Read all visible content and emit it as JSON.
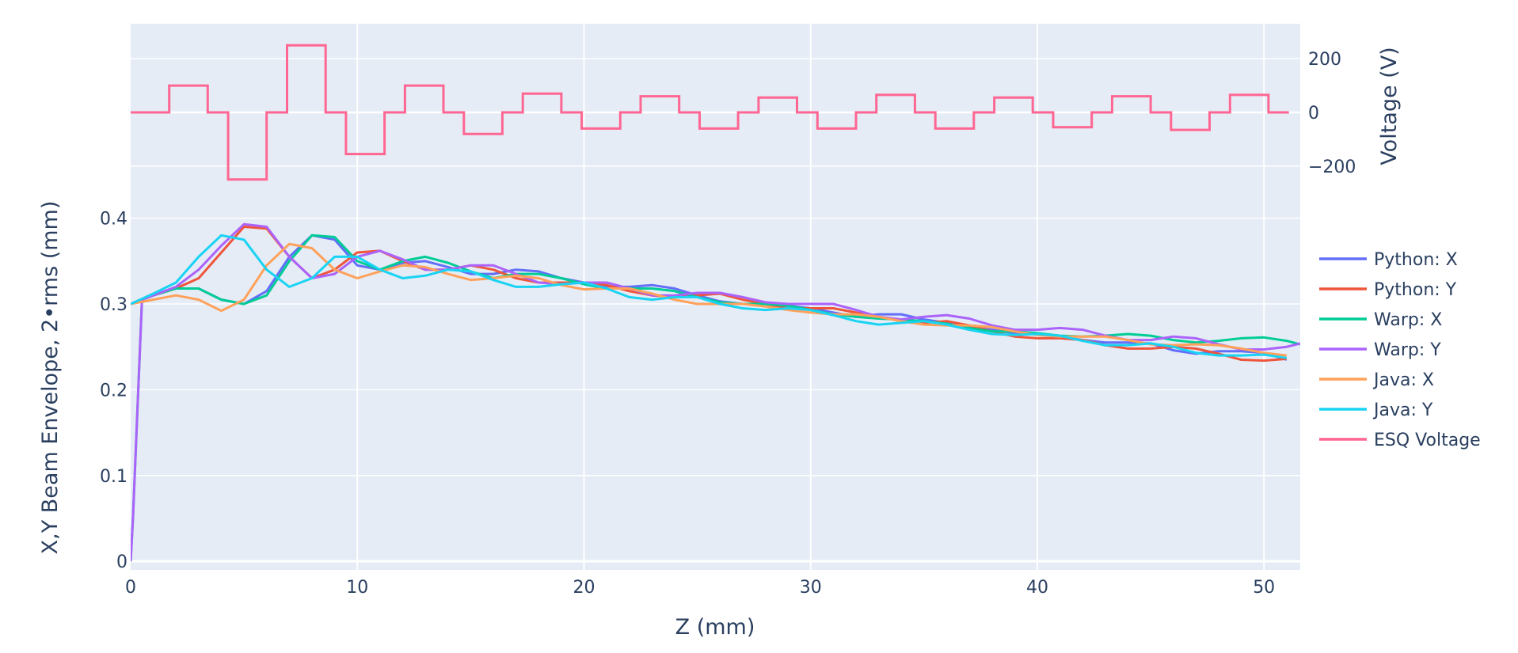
{
  "chart_data": [
    {
      "type": "line",
      "panel": "voltage",
      "ylabel": "Voltage (V)",
      "ylim": [
        -330,
        330
      ],
      "ytick_values": [
        200,
        0,
        -200
      ],
      "ytick_labels": [
        "200",
        "0",
        "−200"
      ],
      "yaxis_side": "right",
      "series": [
        {
          "name": "ESQ Voltage",
          "color": "#ff6692",
          "line_shape": "step",
          "x": [
            0,
            1.7,
            1.7,
            3.4,
            3.4,
            4.3,
            4.3,
            6.0,
            6.0,
            6.9,
            6.9,
            8.6,
            8.6,
            9.5,
            9.5,
            11.2,
            11.2,
            12.1,
            12.1,
            13.8,
            13.8,
            14.7,
            14.7,
            16.4,
            16.4,
            17.3,
            17.3,
            19.0,
            19.0,
            19.9,
            19.9,
            21.6,
            21.6,
            22.5,
            22.5,
            24.2,
            24.2,
            25.1,
            25.1,
            26.8,
            26.8,
            27.7,
            27.7,
            29.4,
            29.4,
            30.3,
            30.3,
            32.0,
            32.0,
            32.9,
            32.9,
            34.6,
            34.6,
            35.5,
            35.5,
            37.2,
            37.2,
            38.1,
            38.1,
            39.8,
            39.8,
            40.7,
            40.7,
            42.4,
            42.4,
            43.3,
            43.3,
            45.0,
            45.0,
            45.9,
            45.9,
            47.6,
            47.6,
            48.5,
            48.5,
            50.2,
            50.2,
            51.1
          ],
          "y": [
            0,
            0,
            100,
            100,
            0,
            0,
            -250,
            -250,
            0,
            0,
            250,
            250,
            0,
            0,
            -155,
            -155,
            0,
            0,
            100,
            100,
            0,
            0,
            -80,
            -80,
            0,
            0,
            70,
            70,
            0,
            0,
            -60,
            -60,
            0,
            0,
            60,
            60,
            0,
            0,
            -60,
            -60,
            0,
            0,
            55,
            55,
            0,
            0,
            -60,
            -60,
            0,
            0,
            65,
            65,
            0,
            0,
            -60,
            -60,
            0,
            0,
            55,
            55,
            0,
            0,
            -55,
            -55,
            0,
            0,
            60,
            60,
            0,
            0,
            -65,
            -65,
            0,
            0,
            65,
            65,
            0,
            0
          ]
        }
      ]
    },
    {
      "type": "line",
      "panel": "envelope",
      "xlabel": "Z (mm)",
      "ylabel": "X,Y Beam Envelope, 2•rms (mm)",
      "xlim": [
        0,
        51.6
      ],
      "ylim": [
        -0.01,
        0.42
      ],
      "xtick_values": [
        0,
        10,
        20,
        30,
        40,
        50
      ],
      "xtick_labels": [
        "0",
        "10",
        "20",
        "30",
        "40",
        "50"
      ],
      "ytick_values": [
        0,
        0.1,
        0.2,
        0.3,
        0.4
      ],
      "ytick_labels": [
        "0",
        "0.1",
        "0.2",
        "0.3",
        "0.4"
      ],
      "grid": true,
      "legend_position": "right",
      "series": [
        {
          "name": "Python: X",
          "color": "#636efa",
          "x": [
            0,
            1,
            2,
            3,
            4,
            5,
            6,
            7,
            8,
            9,
            10,
            11,
            12,
            13,
            14,
            15,
            16,
            17,
            18,
            19,
            20,
            21,
            22,
            23,
            24,
            25,
            26,
            27,
            28,
            29,
            30,
            31,
            32,
            33,
            34,
            35,
            36,
            37,
            38,
            39,
            40,
            41,
            42,
            43,
            44,
            45,
            46,
            47,
            48,
            49,
            50,
            51
          ],
          "y": [
            0.3,
            0.31,
            0.318,
            0.318,
            0.305,
            0.3,
            0.315,
            0.355,
            0.38,
            0.375,
            0.345,
            0.34,
            0.348,
            0.35,
            0.343,
            0.335,
            0.335,
            0.34,
            0.338,
            0.33,
            0.325,
            0.32,
            0.32,
            0.322,
            0.318,
            0.31,
            0.303,
            0.3,
            0.3,
            0.298,
            0.295,
            0.29,
            0.285,
            0.288,
            0.288,
            0.282,
            0.278,
            0.273,
            0.27,
            0.266,
            0.265,
            0.262,
            0.258,
            0.255,
            0.255,
            0.254,
            0.246,
            0.242,
            0.245,
            0.245,
            0.243,
            0.235
          ]
        },
        {
          "name": "Python: Y",
          "color": "#ef553b",
          "x": [
            0,
            1,
            2,
            3,
            4,
            5,
            6,
            7,
            8,
            9,
            10,
            11,
            12,
            13,
            14,
            15,
            16,
            17,
            18,
            19,
            20,
            21,
            22,
            23,
            24,
            25,
            26,
            27,
            28,
            29,
            30,
            31,
            32,
            33,
            34,
            35,
            36,
            37,
            38,
            39,
            40,
            41,
            42,
            43,
            44,
            45,
            46,
            47,
            48,
            49,
            50,
            51
          ],
          "y": [
            0.3,
            0.31,
            0.318,
            0.33,
            0.36,
            0.39,
            0.388,
            0.355,
            0.33,
            0.34,
            0.36,
            0.362,
            0.35,
            0.34,
            0.34,
            0.345,
            0.34,
            0.33,
            0.325,
            0.325,
            0.325,
            0.322,
            0.315,
            0.31,
            0.308,
            0.31,
            0.312,
            0.305,
            0.3,
            0.295,
            0.295,
            0.295,
            0.29,
            0.285,
            0.28,
            0.278,
            0.28,
            0.275,
            0.268,
            0.262,
            0.26,
            0.26,
            0.258,
            0.252,
            0.248,
            0.248,
            0.25,
            0.248,
            0.242,
            0.235,
            0.234,
            0.236
          ]
        },
        {
          "name": "Warp: X",
          "color": "#00cc96",
          "x": [
            0,
            0.1,
            0.5,
            1,
            2,
            3,
            4,
            5,
            6,
            7,
            8,
            9,
            10,
            11,
            12,
            13,
            14,
            15,
            16,
            17,
            18,
            19,
            20,
            21,
            22,
            23,
            24,
            25,
            26,
            27,
            28,
            29,
            30,
            31,
            32,
            33,
            34,
            35,
            36,
            37,
            38,
            39,
            40,
            41,
            42,
            43,
            44,
            45,
            46,
            47,
            48,
            49,
            50,
            51,
            51.6
          ],
          "y": [
            0.0,
            0.05,
            0.305,
            0.31,
            0.318,
            0.318,
            0.305,
            0.3,
            0.31,
            0.35,
            0.38,
            0.378,
            0.35,
            0.34,
            0.35,
            0.355,
            0.348,
            0.338,
            0.33,
            0.335,
            0.335,
            0.33,
            0.323,
            0.318,
            0.318,
            0.318,
            0.315,
            0.308,
            0.302,
            0.3,
            0.3,
            0.298,
            0.293,
            0.288,
            0.285,
            0.283,
            0.282,
            0.28,
            0.277,
            0.272,
            0.268,
            0.268,
            0.266,
            0.263,
            0.262,
            0.263,
            0.265,
            0.263,
            0.258,
            0.255,
            0.257,
            0.26,
            0.261,
            0.257,
            0.253
          ]
        },
        {
          "name": "Warp: Y",
          "color": "#ab63fa",
          "x": [
            0,
            0.1,
            0.5,
            1,
            2,
            3,
            4,
            5,
            6,
            7,
            8,
            9,
            10,
            11,
            12,
            13,
            14,
            15,
            16,
            17,
            18,
            19,
            20,
            21,
            22,
            23,
            24,
            25,
            26,
            27,
            28,
            29,
            30,
            31,
            32,
            33,
            34,
            35,
            36,
            37,
            38,
            39,
            40,
            41,
            42,
            43,
            44,
            45,
            46,
            47,
            48,
            49,
            50,
            51,
            51.6
          ],
          "y": [
            0.0,
            0.05,
            0.305,
            0.31,
            0.32,
            0.34,
            0.368,
            0.393,
            0.39,
            0.355,
            0.33,
            0.335,
            0.355,
            0.362,
            0.352,
            0.34,
            0.34,
            0.345,
            0.345,
            0.335,
            0.325,
            0.323,
            0.325,
            0.325,
            0.318,
            0.31,
            0.31,
            0.313,
            0.313,
            0.308,
            0.302,
            0.3,
            0.3,
            0.3,
            0.293,
            0.285,
            0.282,
            0.285,
            0.287,
            0.283,
            0.275,
            0.27,
            0.27,
            0.272,
            0.27,
            0.263,
            0.258,
            0.258,
            0.262,
            0.26,
            0.253,
            0.247,
            0.247,
            0.25,
            0.254
          ]
        },
        {
          "name": "Java: X",
          "color": "#ffa15a",
          "x": [
            0,
            1,
            2,
            3,
            4,
            5,
            6,
            7,
            8,
            9,
            10,
            11,
            12,
            13,
            14,
            15,
            16,
            17,
            18,
            19,
            20,
            21,
            22,
            23,
            24,
            25,
            26,
            27,
            28,
            29,
            30,
            31,
            32,
            33,
            34,
            35,
            36,
            37,
            38,
            39,
            40,
            41,
            42,
            43,
            44,
            45,
            46,
            47,
            48,
            49,
            50,
            51
          ],
          "y": [
            0.3,
            0.305,
            0.31,
            0.305,
            0.292,
            0.305,
            0.345,
            0.37,
            0.365,
            0.34,
            0.33,
            0.338,
            0.345,
            0.343,
            0.335,
            0.328,
            0.33,
            0.333,
            0.33,
            0.322,
            0.317,
            0.318,
            0.318,
            0.312,
            0.305,
            0.3,
            0.3,
            0.3,
            0.297,
            0.293,
            0.29,
            0.288,
            0.288,
            0.285,
            0.28,
            0.276,
            0.275,
            0.275,
            0.273,
            0.268,
            0.264,
            0.262,
            0.262,
            0.262,
            0.258,
            0.253,
            0.252,
            0.253,
            0.252,
            0.248,
            0.243,
            0.24
          ]
        },
        {
          "name": "Java: Y",
          "color": "#19d3f3",
          "x": [
            0,
            1,
            2,
            3,
            4,
            5,
            6,
            7,
            8,
            9,
            10,
            11,
            12,
            13,
            14,
            15,
            16,
            17,
            18,
            19,
            20,
            21,
            22,
            23,
            24,
            25,
            26,
            27,
            28,
            29,
            30,
            31,
            32,
            33,
            34,
            35,
            36,
            37,
            38,
            39,
            40,
            41,
            42,
            43,
            44,
            45,
            46,
            47,
            48,
            49,
            50,
            51
          ],
          "y": [
            0.3,
            0.312,
            0.325,
            0.355,
            0.38,
            0.375,
            0.34,
            0.32,
            0.33,
            0.355,
            0.355,
            0.34,
            0.33,
            0.333,
            0.34,
            0.338,
            0.328,
            0.32,
            0.32,
            0.323,
            0.325,
            0.318,
            0.308,
            0.305,
            0.308,
            0.308,
            0.3,
            0.295,
            0.293,
            0.295,
            0.293,
            0.287,
            0.28,
            0.276,
            0.278,
            0.28,
            0.276,
            0.27,
            0.265,
            0.264,
            0.265,
            0.263,
            0.257,
            0.252,
            0.252,
            0.254,
            0.25,
            0.243,
            0.24,
            0.24,
            0.241,
            0.237
          ]
        }
      ]
    }
  ]
}
